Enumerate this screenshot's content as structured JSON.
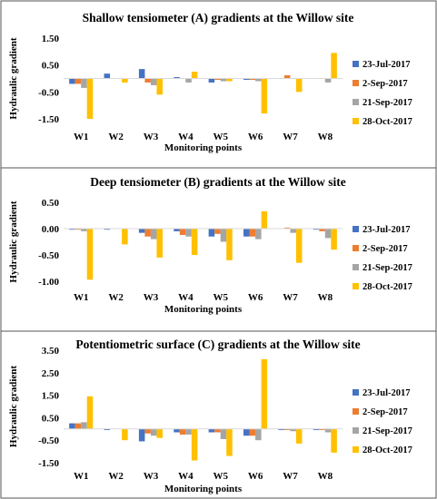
{
  "colors": {
    "23-Jul-2017": "#4472C4",
    "2-Sep-2017": "#ED7D31",
    "21-Sep-2017": "#A5A5A5",
    "28-Oct-2017": "#FFC000"
  },
  "chart_data": [
    {
      "type": "bar",
      "title": "Shallow tensiometer (A) gradients at the Willow site",
      "xlabel": "Monitoring points",
      "ylabel": "Hydraulic gradient",
      "ylim": [
        -1.5,
        1.5
      ],
      "yticks": [
        "1.50",
        "0.50",
        "-0.50",
        "-1.50"
      ],
      "ytick_values": [
        1.5,
        0.5,
        -0.5,
        -1.5
      ],
      "grid": false,
      "legend_position": "right",
      "categories": [
        "W1",
        "W2",
        "W3",
        "W4",
        "W5",
        "W6",
        "W7",
        "W8"
      ],
      "series": [
        {
          "name": "23-Jul-2017",
          "values": [
            -0.2,
            0.18,
            0.35,
            0.05,
            -0.15,
            -0.05,
            0.0,
            0.0
          ]
        },
        {
          "name": "2-Sep-2017",
          "values": [
            -0.2,
            0.0,
            -0.15,
            0.0,
            -0.05,
            -0.05,
            0.12,
            0.0
          ]
        },
        {
          "name": "21-Sep-2017",
          "values": [
            -0.35,
            0.0,
            -0.25,
            -0.15,
            -0.1,
            -0.1,
            0.0,
            -0.15
          ]
        },
        {
          "name": "28-Oct-2017",
          "values": [
            -1.5,
            -0.15,
            -0.6,
            0.25,
            -0.1,
            -1.3,
            -0.5,
            0.95
          ]
        }
      ]
    },
    {
      "type": "bar",
      "title": "Deep tensiometer (B) gradients at the Willow site",
      "xlabel": "Monitoring points",
      "ylabel": "Hydraulic gradient",
      "ylim": [
        -1.0,
        0.5
      ],
      "yticks": [
        "0.50",
        "0.00",
        "-0.50",
        "-1.00"
      ],
      "ytick_values": [
        0.5,
        0.0,
        -0.5,
        -1.0
      ],
      "grid": false,
      "legend_position": "right",
      "categories": [
        "W1",
        "W2",
        "W3",
        "W4",
        "W5",
        "W6",
        "W7",
        "W8"
      ],
      "series": [
        {
          "name": "23-Jul-2017",
          "values": [
            -0.02,
            -0.02,
            -0.08,
            -0.05,
            -0.15,
            -0.15,
            0.0,
            -0.02
          ]
        },
        {
          "name": "2-Sep-2017",
          "values": [
            -0.02,
            0.0,
            -0.15,
            -0.12,
            -0.1,
            -0.15,
            0.02,
            -0.05
          ]
        },
        {
          "name": "21-Sep-2017",
          "values": [
            -0.05,
            0.0,
            -0.2,
            -0.15,
            -0.25,
            -0.2,
            -0.08,
            -0.18
          ]
        },
        {
          "name": "28-Oct-2017",
          "values": [
            -0.97,
            -0.3,
            -0.55,
            -0.5,
            -0.6,
            0.33,
            -0.65,
            -0.4
          ]
        }
      ]
    },
    {
      "type": "bar",
      "title": "Potentiometric surface (C) gradients at the Willow site",
      "xlabel": "Monitoring points",
      "ylabel": "Hydraulic gradient",
      "ylim": [
        -1.5,
        3.5
      ],
      "yticks": [
        "3.50",
        "2.50",
        "1.50",
        "0.50",
        "-0.50",
        "-1.50"
      ],
      "ytick_values": [
        3.5,
        2.5,
        1.5,
        0.5,
        -0.5,
        -1.5
      ],
      "grid": false,
      "legend_position": "right",
      "categories": [
        "W1",
        "W2",
        "W3",
        "W4",
        "W5",
        "W6",
        "W7",
        "W8"
      ],
      "series": [
        {
          "name": "23-Jul-2017",
          "values": [
            0.25,
            -0.05,
            -0.55,
            -0.15,
            -0.15,
            -0.3,
            -0.05,
            -0.05
          ]
        },
        {
          "name": "2-Sep-2017",
          "values": [
            0.25,
            0.0,
            -0.2,
            -0.25,
            -0.15,
            -0.3,
            -0.05,
            -0.05
          ]
        },
        {
          "name": "21-Sep-2017",
          "values": [
            0.3,
            0.0,
            -0.3,
            -0.25,
            -0.45,
            -0.5,
            -0.1,
            -0.15
          ]
        },
        {
          "name": "28-Oct-2017",
          "values": [
            1.45,
            -0.5,
            -0.4,
            -1.4,
            -1.2,
            3.1,
            -0.65,
            -1.05
          ]
        }
      ]
    }
  ]
}
